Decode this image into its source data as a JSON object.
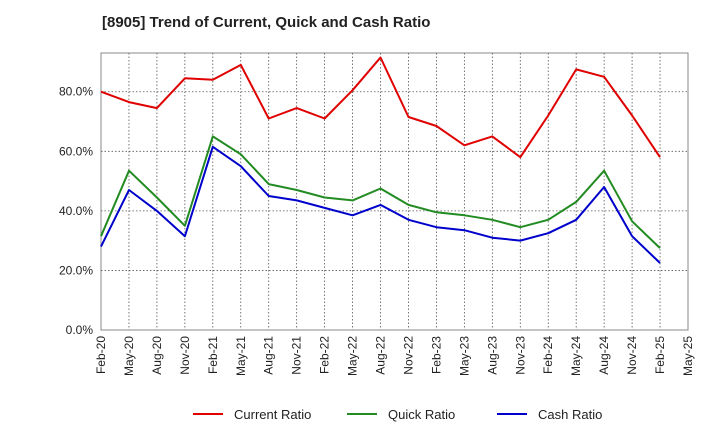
{
  "chart_data": {
    "type": "line",
    "title": "[8905]  Trend of Current, Quick and Cash Ratio",
    "xlabel": "",
    "ylabel": "",
    "ylim": [
      0,
      93
    ],
    "y_ticks": [
      "0.0%",
      "20.0%",
      "40.0%",
      "60.0%",
      "80.0%"
    ],
    "y_tick_values": [
      0,
      20,
      40,
      60,
      80
    ],
    "x_tick_labels": [
      "Feb-20",
      "May-20",
      "Aug-20",
      "Nov-20",
      "Feb-21",
      "May-21",
      "Aug-21",
      "Nov-21",
      "Feb-22",
      "May-22",
      "Aug-22",
      "Nov-22",
      "Feb-23",
      "May-23",
      "Aug-23",
      "Nov-23",
      "Feb-24",
      "May-24",
      "Aug-24",
      "Nov-24",
      "Feb-25",
      "May-25"
    ],
    "grid": true,
    "legend_position": "bottom",
    "series": [
      {
        "name": "Current Ratio",
        "color": "#e00000",
        "values": [
          80.0,
          76.5,
          74.5,
          84.5,
          84.0,
          89.0,
          71.0,
          74.5,
          71.0,
          80.5,
          91.5,
          71.5,
          68.5,
          62.0,
          65.0,
          58.0,
          72.0,
          87.5,
          85.0,
          72.0,
          58.0
        ]
      },
      {
        "name": "Quick Ratio",
        "color": "#228b22",
        "values": [
          31.5,
          53.5,
          44.5,
          35.0,
          65.0,
          59.0,
          49.0,
          47.0,
          44.5,
          43.5,
          47.5,
          42.0,
          39.5,
          38.5,
          37.0,
          34.5,
          37.0,
          43.0,
          53.5,
          36.5,
          27.5
        ]
      },
      {
        "name": "Cash Ratio",
        "color": "#0000cc",
        "values": [
          28.0,
          47.0,
          40.0,
          31.5,
          61.5,
          55.0,
          45.0,
          43.5,
          41.0,
          38.5,
          42.0,
          37.0,
          34.5,
          33.5,
          31.0,
          30.0,
          32.5,
          37.0,
          48.0,
          31.5,
          22.5
        ]
      }
    ]
  }
}
